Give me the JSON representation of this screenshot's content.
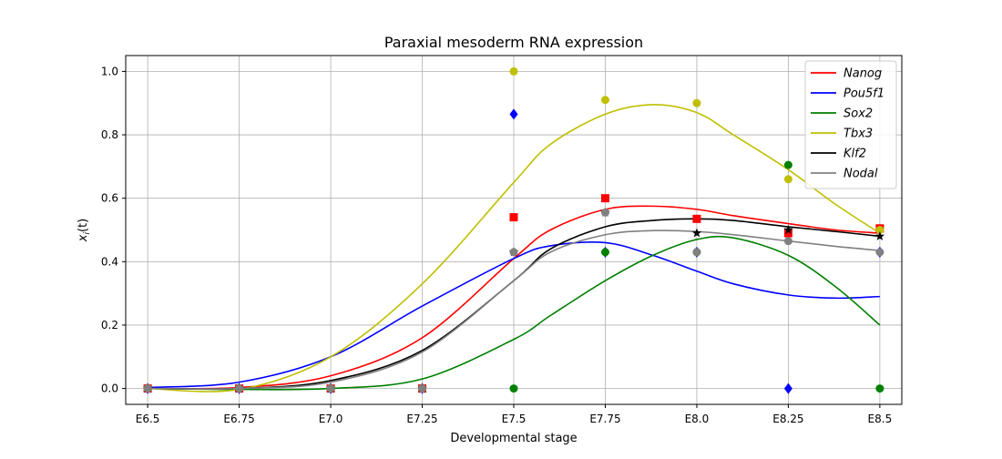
{
  "chart_data": {
    "type": "line",
    "title": "Paraxial mesoderm RNA expression",
    "xlabel": "Developmental stage",
    "ylabel": "x_i(t)",
    "xlim": [
      6.44,
      8.56
    ],
    "ylim": [
      -0.05,
      1.05
    ],
    "grid": true,
    "legend_position": "top-right",
    "x_ticks": [
      6.5,
      6.75,
      7.0,
      7.25,
      7.5,
      7.75,
      8.0,
      8.25,
      8.5
    ],
    "x_tick_labels": [
      "E6.5",
      "E6.75",
      "E7.0",
      "E7.25",
      "E7.5",
      "E7.75",
      "E8.0",
      "E8.25",
      "E8.5"
    ],
    "y_ticks": [
      0.0,
      0.2,
      0.4,
      0.6,
      0.8,
      1.0
    ],
    "y_tick_labels": [
      "0.0",
      "0.2",
      "0.4",
      "0.6",
      "0.8",
      "1.0"
    ],
    "curve_x": [
      6.5,
      6.75,
      7.0,
      7.25,
      7.5,
      7.6,
      7.75,
      7.88,
      8.0,
      8.1,
      8.25,
      8.38,
      8.5
    ],
    "series": [
      {
        "name": "Nanog",
        "color": "#ff0000",
        "marker": "square",
        "points_x": [
          6.5,
          6.75,
          7.0,
          7.25,
          7.5,
          7.75,
          8.0,
          8.25,
          8.5
        ],
        "points_y": [
          0.0,
          0.0,
          0.0,
          0.0,
          0.54,
          0.6,
          0.535,
          0.49,
          0.505
        ],
        "curve_y": [
          0.0,
          0.003,
          0.04,
          0.16,
          0.41,
          0.5,
          0.565,
          0.575,
          0.565,
          0.545,
          0.52,
          0.5,
          0.49
        ]
      },
      {
        "name": "Pou5f1",
        "color": "#0000ff",
        "marker": "diamond",
        "points_x": [
          6.5,
          6.75,
          7.0,
          7.25,
          7.5,
          7.75,
          8.0,
          8.25,
          8.5
        ],
        "points_y": [
          0.0,
          0.0,
          0.0,
          0.0,
          0.865,
          0.43,
          0.43,
          0.0,
          0.43
        ],
        "curve_y": [
          0.003,
          0.02,
          0.1,
          0.26,
          0.41,
          0.45,
          0.46,
          0.42,
          0.37,
          0.33,
          0.295,
          0.285,
          0.29
        ]
      },
      {
        "name": "Sox2",
        "color": "#008000",
        "marker": "circle",
        "points_x": [
          6.5,
          6.75,
          7.0,
          7.25,
          7.5,
          7.75,
          8.0,
          8.25,
          8.5
        ],
        "points_y": [
          0.0,
          0.0,
          0.0,
          0.0,
          0.0,
          0.43,
          0.43,
          0.705,
          0.0
        ],
        "curve_y": [
          0.0,
          -0.003,
          0.0,
          0.03,
          0.155,
          0.23,
          0.34,
          0.42,
          0.47,
          0.475,
          0.42,
          0.32,
          0.2
        ]
      },
      {
        "name": "Tbx3",
        "color": "#bfbf00",
        "marker": "circle",
        "points_x": [
          6.5,
          6.75,
          7.0,
          7.25,
          7.5,
          7.75,
          8.0,
          8.25,
          8.5
        ],
        "points_y": [
          0.0,
          0.0,
          0.0,
          0.0,
          1.0,
          0.91,
          0.9,
          0.66,
          0.5
        ],
        "curve_y": [
          0.0,
          -0.003,
          0.1,
          0.33,
          0.65,
          0.77,
          0.865,
          0.895,
          0.87,
          0.8,
          0.69,
          0.58,
          0.49
        ]
      },
      {
        "name": "Klf2",
        "color": "#000000",
        "marker": "star",
        "points_x": [
          6.5,
          6.75,
          7.0,
          7.25,
          7.5,
          7.75,
          8.0,
          8.25,
          8.5
        ],
        "points_y": [
          0.0,
          0.0,
          0.0,
          0.0,
          0.43,
          0.555,
          0.49,
          0.5,
          0.48
        ],
        "curve_y": [
          0.0,
          0.0,
          0.025,
          0.12,
          0.34,
          0.44,
          0.51,
          0.53,
          0.535,
          0.53,
          0.51,
          0.495,
          0.48
        ]
      },
      {
        "name": "Nodal",
        "color": "#808080",
        "marker": "circle",
        "points_x": [
          6.5,
          6.75,
          7.0,
          7.25,
          7.5,
          7.75,
          8.0,
          8.25,
          8.5
        ],
        "points_y": [
          0.0,
          0.0,
          0.0,
          0.0,
          0.43,
          0.555,
          0.43,
          0.465,
          0.43
        ],
        "curve_y": [
          0.0,
          0.0,
          0.02,
          0.115,
          0.34,
          0.43,
          0.485,
          0.498,
          0.495,
          0.485,
          0.465,
          0.448,
          0.435
        ]
      }
    ]
  }
}
